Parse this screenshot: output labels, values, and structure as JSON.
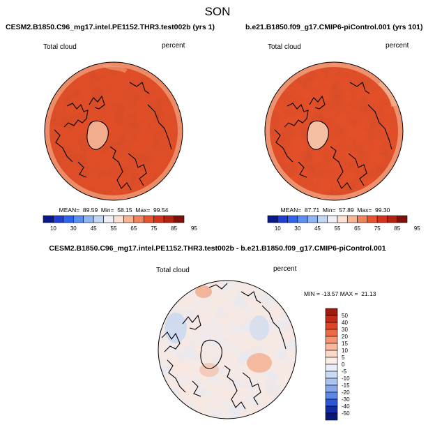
{
  "figure_title": "SON",
  "chart_data": [
    {
      "type": "heatmap",
      "title": "CESM2.B1850.C96_mg17.intel.PE1152.THR3.test002b (yrs 1)",
      "variable": "Total cloud",
      "units": "percent",
      "projection": "north-polar-stereographic",
      "stats_label": "MEAN=  89.59  Min=  58.15  Max=  99.54",
      "stats": {
        "mean": 89.59,
        "min": 58.15,
        "max": 99.54
      },
      "colorbar_levels": [
        "10",
        "30",
        "45",
        "55",
        "65",
        "75",
        "85",
        "95"
      ],
      "colorbar_colors": [
        "#0a1a8c",
        "#1e3fd1",
        "#2f64ee",
        "#5b8ef2",
        "#8fb5f3",
        "#c2d7f4",
        "#eef0f5",
        "#fbe1d3",
        "#f7b594",
        "#f2845c",
        "#e9542f",
        "#d6331a",
        "#b32410",
        "#7f1208"
      ]
    },
    {
      "type": "heatmap",
      "title": "b.e21.B1850.f09_g17.CMIP6-piControl.001 (yrs 101)",
      "variable": "Total cloud",
      "units": "percent",
      "projection": "north-polar-stereographic",
      "stats_label": "MEAN=  87.71  Min=  57.89  Max=  99.30",
      "stats": {
        "mean": 87.71,
        "min": 57.89,
        "max": 99.3
      },
      "colorbar_levels": [
        "10",
        "30",
        "45",
        "55",
        "65",
        "75",
        "85",
        "95"
      ],
      "colorbar_colors": [
        "#0a1a8c",
        "#1e3fd1",
        "#2f64ee",
        "#5b8ef2",
        "#8fb5f3",
        "#c2d7f4",
        "#eef0f5",
        "#fbe1d3",
        "#f7b594",
        "#f2845c",
        "#e9542f",
        "#d6331a",
        "#b32410",
        "#7f1208"
      ]
    },
    {
      "type": "heatmap",
      "title": "CESM2.B1850.C96_mg17.intel.PE1152.THR3.test002b - b.e21.B1850.f09_g17.CMIP6-piControl.001",
      "variable": "Total cloud",
      "units": "percent",
      "projection": "north-polar-stereographic",
      "stats_label": "MIN = -13.57 MAX =  21.13",
      "stats": {
        "min": -13.57,
        "max": 21.13
      },
      "colorbar_levels": [
        "50",
        "40",
        "30",
        "20",
        "15",
        "10",
        "5",
        "0",
        "-5",
        "-10",
        "-15",
        "-20",
        "-30",
        "-40",
        "-50"
      ],
      "colorbar_colors": [
        "#a01b0b",
        "#c42a14",
        "#de4425",
        "#ef6a44",
        "#f59472",
        "#f8b99e",
        "#fbd9c8",
        "#faeee6",
        "#e8eef8",
        "#c9dbf3",
        "#a9c5ee",
        "#85a9ea",
        "#5d87e6",
        "#2b58d6",
        "#0f2ba8",
        "#081a78"
      ]
    }
  ]
}
